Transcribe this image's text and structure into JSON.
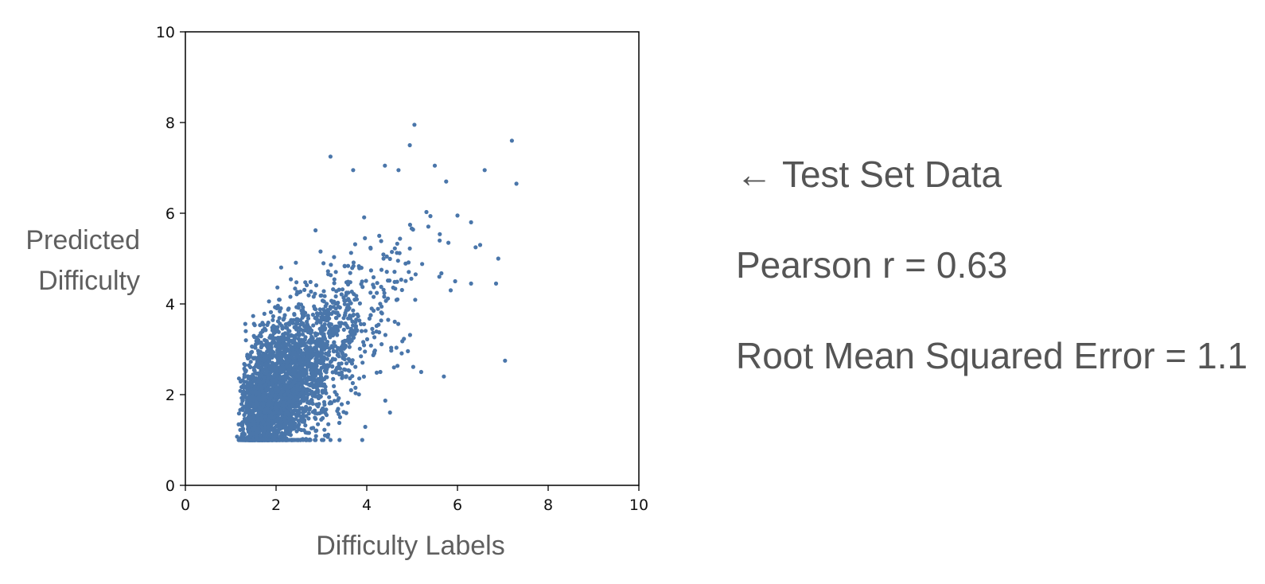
{
  "chart_data": {
    "type": "scatter",
    "title": "",
    "xlabel": "Difficulty Labels",
    "ylabel_lines": [
      "Predicted",
      "Difficulty"
    ],
    "xlim": [
      0,
      10
    ],
    "ylim": [
      0,
      10
    ],
    "xticks": [
      0,
      2,
      4,
      6,
      8,
      10
    ],
    "yticks": [
      0,
      2,
      4,
      6,
      8,
      10
    ],
    "grid": false,
    "point_color": "#4a76aa",
    "n_points": 3000,
    "points_summary": {
      "floor_y": 1.0,
      "x_range": [
        1.1,
        7.3
      ],
      "y_range": [
        1.0,
        8.0
      ],
      "center": [
        2.4,
        2.8
      ]
    },
    "outliers": [
      [
        5.05,
        7.95
      ],
      [
        7.2,
        7.6
      ],
      [
        7.3,
        6.65
      ],
      [
        6.6,
        6.95
      ],
      [
        4.95,
        7.5
      ],
      [
        3.2,
        7.25
      ],
      [
        5.5,
        7.05
      ],
      [
        6.0,
        5.95
      ],
      [
        6.3,
        5.8
      ],
      [
        6.5,
        5.3
      ],
      [
        6.9,
        5.0
      ],
      [
        6.85,
        4.45
      ],
      [
        7.05,
        2.75
      ],
      [
        5.7,
        2.4
      ],
      [
        5.2,
        2.5
      ],
      [
        6.3,
        4.45
      ],
      [
        5.95,
        4.5
      ],
      [
        5.85,
        4.3
      ],
      [
        6.4,
        5.25
      ],
      [
        5.75,
        6.7
      ],
      [
        4.4,
        7.05
      ],
      [
        4.7,
        6.95
      ],
      [
        3.7,
        6.95
      ],
      [
        5.8,
        5.35
      ],
      [
        5.6,
        4.6
      ],
      [
        3.9,
        1.0
      ],
      [
        3.4,
        1.0
      ],
      [
        3.2,
        1.0
      ],
      [
        4.3,
        2.5
      ],
      [
        4.6,
        2.6
      ]
    ]
  },
  "stats": {
    "test_set_label": "← Test Set Data",
    "pearson": "Pearson r = 0.63",
    "rmse": "Root Mean Squared Error = 1.1"
  }
}
